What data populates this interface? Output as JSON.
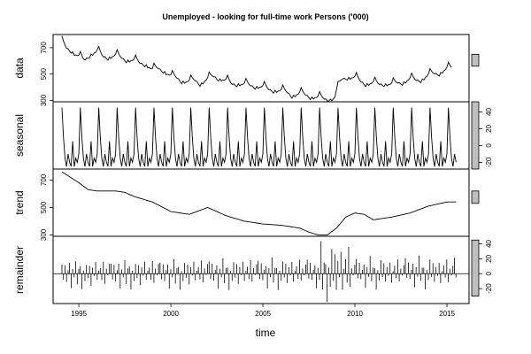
{
  "chart_data": {
    "type": "line",
    "title": "Unemployed - looking for full-time work Persons ('000)",
    "xlabel": "time",
    "x_ticks": [
      1995,
      2000,
      2005,
      2010,
      2015
    ],
    "x_range": [
      1993.6,
      2016.2
    ],
    "panels": [
      {
        "name": "data",
        "ylim": [
          290,
          800
        ],
        "y_ticks": [
          300,
          500,
          700
        ],
        "scale_bar": [
          560,
          650
        ],
        "anchor_years": [
          1994.08,
          1994.4,
          1994.7,
          1995.0,
          1995.3,
          1995.6,
          1996.0,
          1996.3,
          1996.6,
          1997.0,
          1997.3,
          1997.6,
          1998.0,
          1998.3,
          1998.6,
          1999.0,
          1999.3,
          1999.6,
          2000.0,
          2000.3,
          2000.6,
          2001.0,
          2001.3,
          2001.6,
          2002.0,
          2002.3,
          2002.6,
          2003.0,
          2003.3,
          2003.6,
          2004.0,
          2004.3,
          2004.6,
          2005.0,
          2005.3,
          2005.6,
          2006.0,
          2006.3,
          2006.6,
          2007.0,
          2007.3,
          2007.6,
          2008.0,
          2008.3,
          2008.6,
          2008.9,
          2009.0,
          2009.3,
          2009.6,
          2010.0,
          2010.3,
          2010.6,
          2011.0,
          2011.3,
          2011.6,
          2012.0,
          2012.3,
          2012.6,
          2013.0,
          2013.3,
          2013.6,
          2014.0,
          2014.3,
          2014.6,
          2015.0,
          2015.3
        ],
        "anchor_values": [
          760,
          700,
          660,
          650,
          620,
          640,
          690,
          650,
          620,
          660,
          640,
          600,
          620,
          600,
          570,
          550,
          560,
          520,
          500,
          490,
          440,
          460,
          470,
          420,
          480,
          500,
          460,
          470,
          440,
          420,
          440,
          430,
          400,
          420,
          400,
          370,
          390,
          380,
          330,
          370,
          360,
          320,
          340,
          330,
          300,
          330,
          390,
          480,
          470,
          490,
          460,
          420,
          450,
          440,
          420,
          440,
          450,
          430,
          480,
          470,
          450,
          510,
          520,
          500,
          560,
          560
        ],
        "seasonal_amplitude": 30
      },
      {
        "name": "seasonal",
        "ylim": [
          -28,
          52
        ],
        "y_ticks": [
          -20,
          0,
          20,
          40
        ],
        "scale_bar": [
          -28,
          52
        ],
        "cycle_start": 1994.08,
        "cycle_end": 2015.5,
        "cycle_months": [
          0,
          1,
          2,
          3,
          4,
          5,
          6,
          7,
          8,
          9,
          10,
          11
        ],
        "cycle_values": [
          45,
          10,
          -15,
          -25,
          -10,
          -20,
          -25,
          5,
          -25,
          -15,
          -20,
          -10
        ]
      },
      {
        "name": "trend",
        "ylim": [
          290,
          780
        ],
        "y_ticks": [
          300,
          500,
          700
        ],
        "scale_bar": [
          530,
          620
        ],
        "years": [
          1994.08,
          1995.0,
          1995.5,
          1996.0,
          1997.0,
          1997.5,
          1998.0,
          1999.0,
          2000.0,
          2001.0,
          2002.0,
          2003.0,
          2004.0,
          2005.0,
          2006.0,
          2007.0,
          2007.5,
          2008.0,
          2008.5,
          2009.0,
          2009.5,
          2010.0,
          2010.5,
          2011.0,
          2012.0,
          2013.0,
          2014.0,
          2015.0,
          2015.5
        ],
        "values": [
          760,
          680,
          630,
          620,
          620,
          610,
          580,
          540,
          470,
          450,
          500,
          440,
          400,
          380,
          370,
          350,
          320,
          300,
          300,
          350,
          430,
          460,
          450,
          410,
          430,
          460,
          510,
          540,
          540
        ]
      },
      {
        "name": "remainder",
        "ylim": [
          -40,
          50
        ],
        "y_ticks": [
          -20,
          0,
          20,
          40
        ],
        "scale_bar": [
          -30,
          45
        ],
        "start": 1994.08,
        "step": 0.0833,
        "pattern": [
          22,
          -8,
          15,
          -12,
          5,
          18,
          -20,
          10,
          -5,
          25,
          -15,
          8,
          12,
          -22,
          6,
          -10,
          20,
          -6,
          14,
          -18,
          9,
          -4,
          16,
          -14,
          4,
          11,
          -9,
          19,
          -16,
          7,
          -3,
          13
        ]
      }
    ]
  }
}
